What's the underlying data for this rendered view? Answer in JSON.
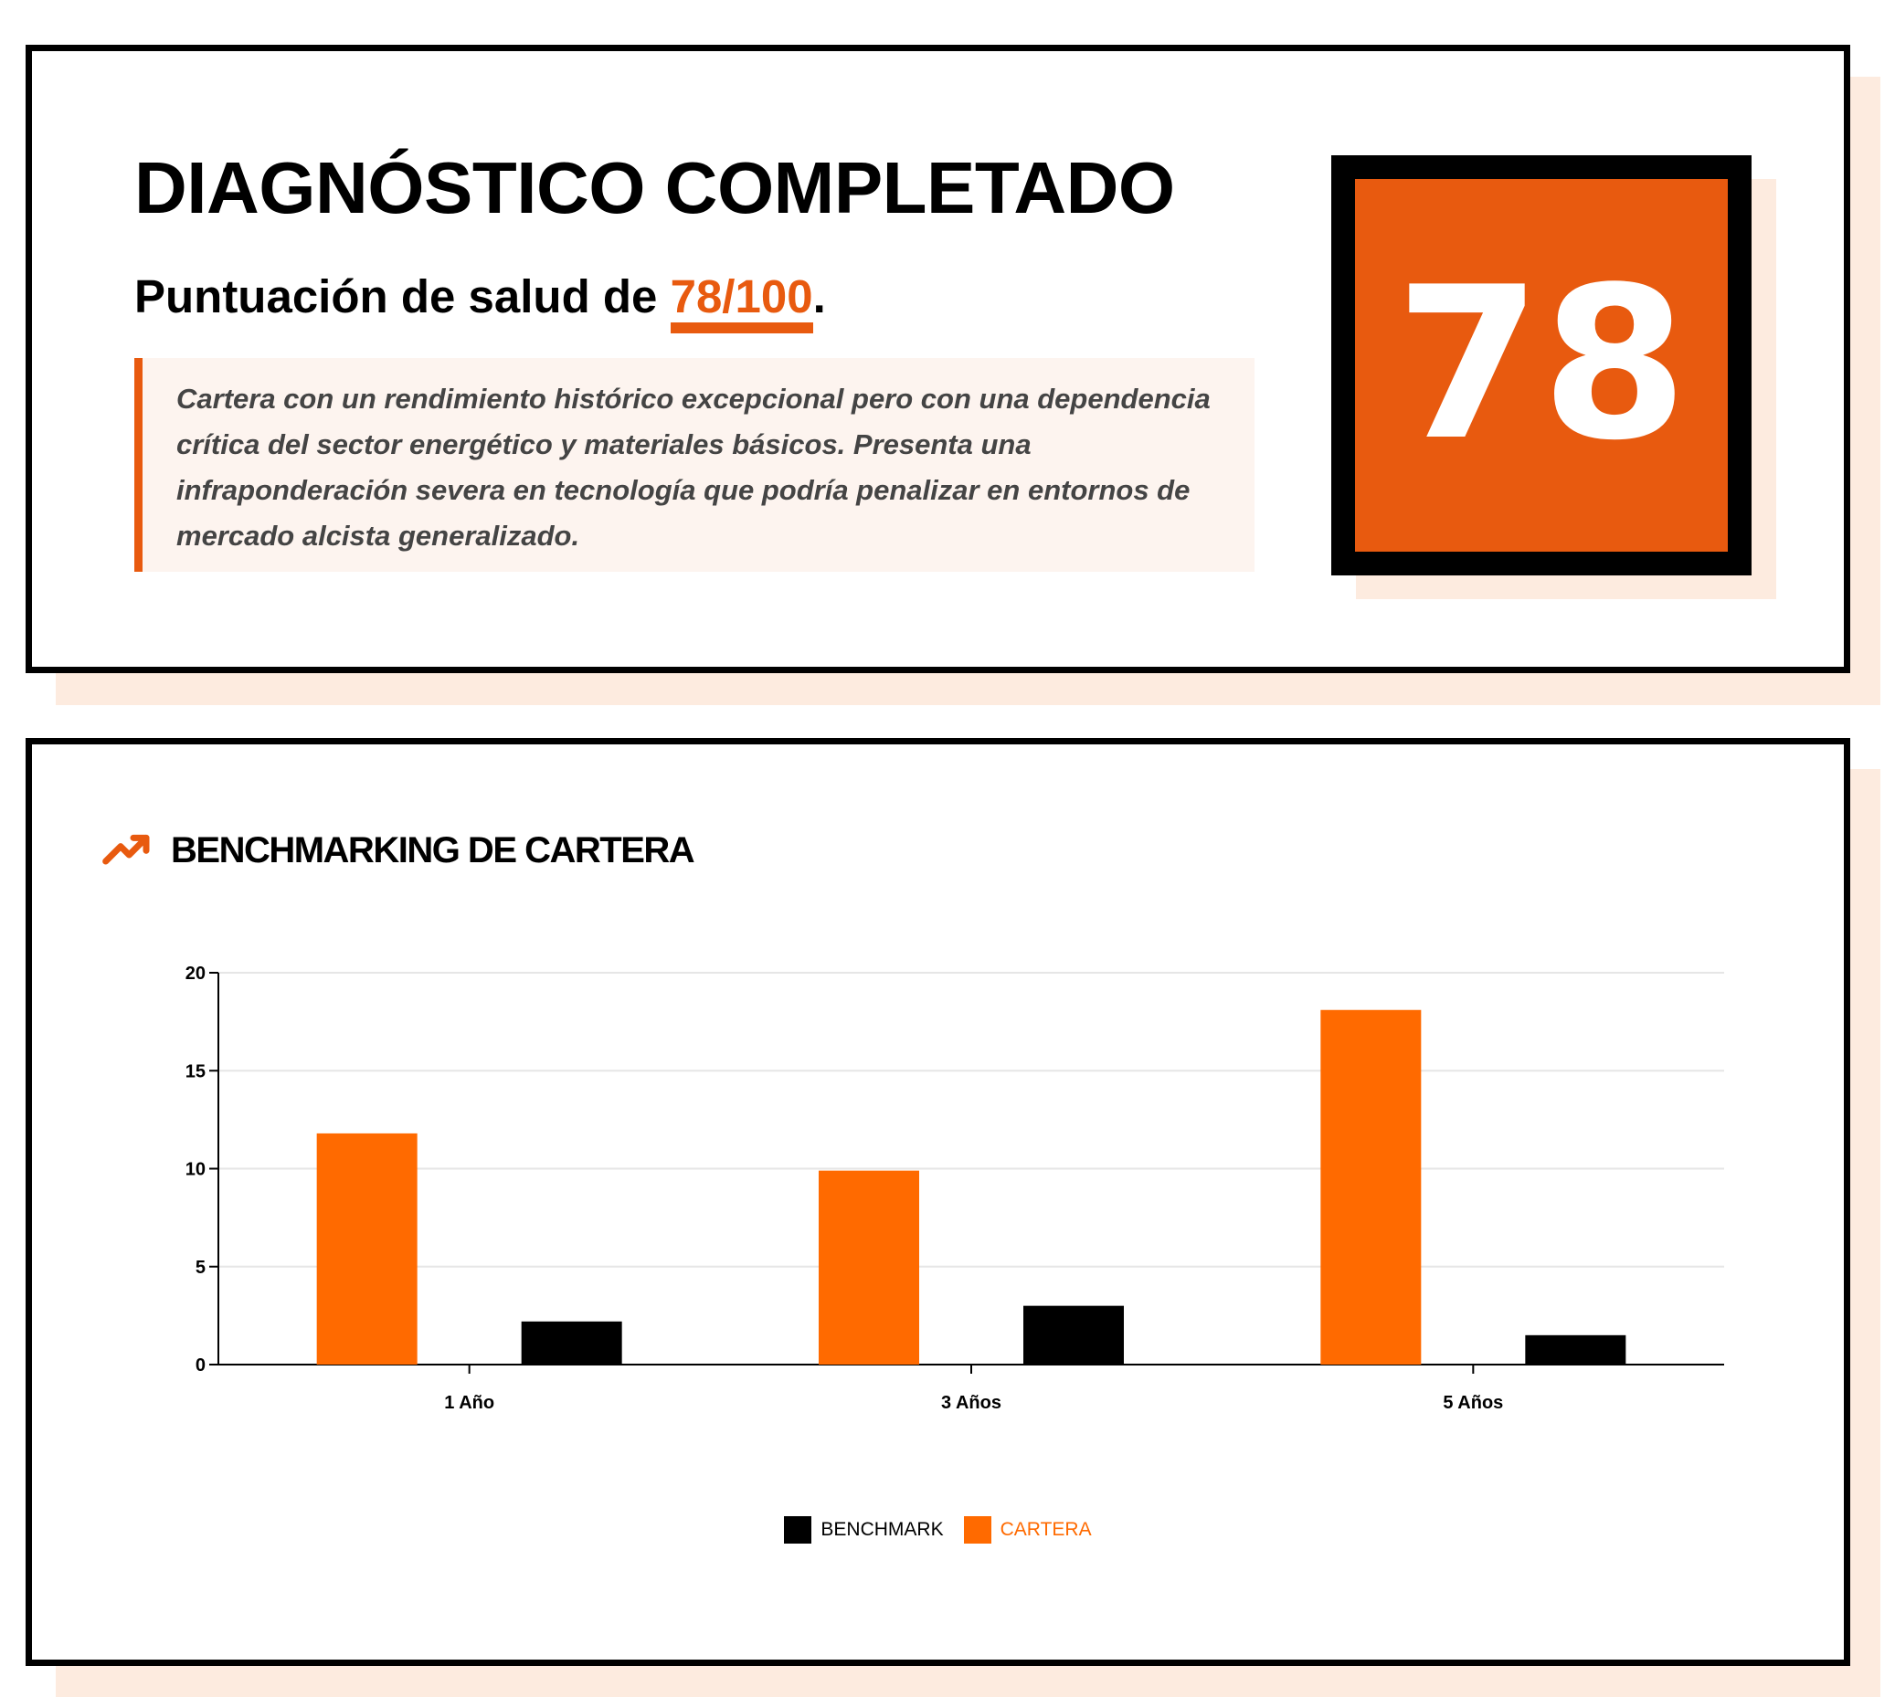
{
  "diagnosis": {
    "title": "DIAGNÓSTICO COMPLETADO",
    "subtitle_prefix": "Puntuación de salud de ",
    "score_text": "78/100",
    "subtitle_suffix": ".",
    "summary": "Cartera con un rendimiento histórico excepcional pero con una dependencia crítica del sector energético y materiales básicos. Presenta una infraponderación severa en tecnología que podría penalizar en entornos de mercado alcista generalizado.",
    "score_badge": "78",
    "score_value": 78
  },
  "benchmark_section": {
    "title": "BENCHMARKING DE CARTERA",
    "icon": "trending-up-icon"
  },
  "colors": {
    "accent": "#e85a0f",
    "cartera": "#ff6a00",
    "benchmark": "#000000",
    "shadow": "#fdebdf"
  },
  "chart_data": {
    "type": "bar",
    "categories": [
      "1 Año",
      "3 Años",
      "5 Años"
    ],
    "series": [
      {
        "name": "CARTERA",
        "values": [
          11.8,
          9.9,
          18.1
        ]
      },
      {
        "name": "BENCHMARK",
        "values": [
          2.2,
          3.0,
          1.5
        ]
      }
    ],
    "ylim": [
      0,
      20
    ],
    "yticks": [
      0,
      5,
      10,
      15,
      20
    ],
    "grid": true,
    "legend": "bottom-center",
    "legend_entries": [
      "BENCHMARK",
      "CARTERA"
    ]
  }
}
